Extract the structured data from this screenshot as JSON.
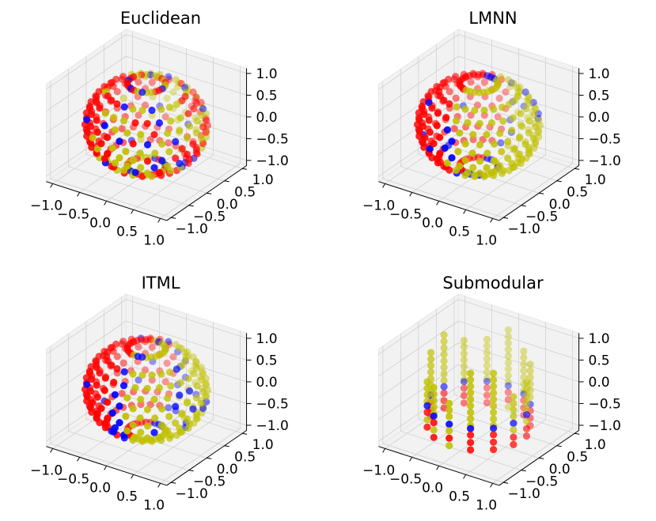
{
  "figure": {
    "type": "scatter3d",
    "background": "#ffffff",
    "pane_color": "#f2f2f2",
    "grid_color": "#d0d0d0",
    "series_colors": {
      "red": "#ff0000",
      "yellow": "#c0c000",
      "blue": "#0000ff"
    }
  },
  "chart_data": [
    {
      "type": "scatter",
      "title": "Euclidean",
      "x_ticks": [
        "−1.0",
        "−0.5",
        "0.0",
        "0.5",
        "1.0"
      ],
      "y_ticks": [
        "−1.0",
        "−0.5",
        "0.0",
        "0.5",
        "1.0"
      ],
      "z_ticks": [
        "−1.0",
        "−0.5",
        "0.0",
        "0.5",
        "1.0"
      ],
      "xlim": [
        -1,
        1
      ],
      "ylim": [
        -1,
        1
      ],
      "zlim": [
        -1,
        1
      ],
      "grid": true,
      "pattern": "mixed"
    },
    {
      "type": "scatter",
      "title": "LMNN",
      "x_ticks": [
        "−1.0",
        "−0.5",
        "0.0",
        "0.5",
        "1.0"
      ],
      "y_ticks": [
        "−1.0",
        "−0.5",
        "0.0",
        "0.5",
        "1.0"
      ],
      "z_ticks": [
        "−1.0",
        "−0.5",
        "0.0",
        "0.5",
        "1.0"
      ],
      "xlim": [
        -1,
        1
      ],
      "ylim": [
        -1,
        1
      ],
      "zlim": [
        -1,
        1
      ],
      "grid": true,
      "pattern": "split"
    },
    {
      "type": "scatter",
      "title": "ITML",
      "x_ticks": [
        "−1.0",
        "−0.5",
        "0.0",
        "0.5",
        "1.0"
      ],
      "y_ticks": [
        "−1.0",
        "−0.5",
        "0.0",
        "0.5",
        "1.0"
      ],
      "z_ticks": [
        "−1.0",
        "−0.5",
        "0.0",
        "0.5",
        "1.0"
      ],
      "xlim": [
        -1,
        1
      ],
      "ylim": [
        -1,
        1
      ],
      "zlim": [
        -1,
        1
      ],
      "grid": true,
      "pattern": "split"
    },
    {
      "type": "scatter",
      "title": "Submodular",
      "x_ticks": [
        "−1.0",
        "−0.5",
        "0.0",
        "0.5",
        "1.0"
      ],
      "y_ticks": [
        "−1.0",
        "−0.5",
        "0.0",
        "0.5",
        "1.0"
      ],
      "z_ticks": [
        "−1.0",
        "−0.5",
        "0.0",
        "0.5",
        "1.0"
      ],
      "xlim": [
        -1,
        1
      ],
      "ylim": [
        -1,
        1
      ],
      "zlim": [
        -1,
        1
      ],
      "grid": true,
      "pattern": "pillars"
    }
  ]
}
